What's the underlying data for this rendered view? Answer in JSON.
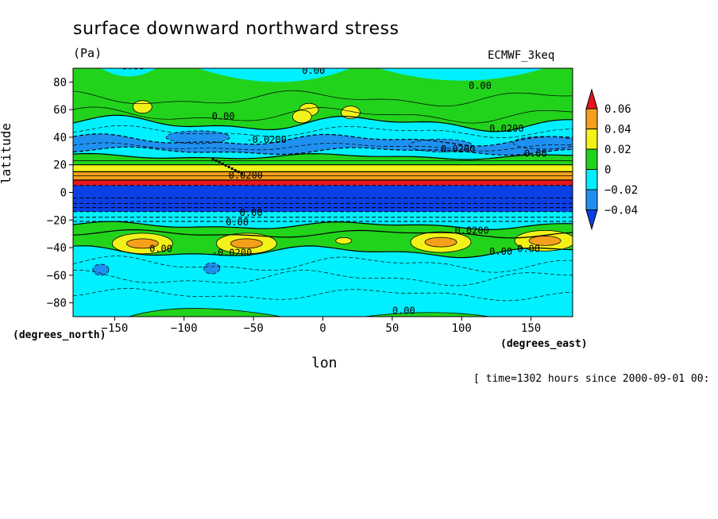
{
  "chart_data": {
    "type": "heatmap",
    "title": "surface downward northward stress",
    "units": "(Pa)",
    "dataset": "ECMWF_3keq",
    "xlabel": "lon",
    "ylabel": "latitude",
    "x_units_label": "(degrees_east)",
    "y_units_label": "(degrees_north)",
    "timestamp": "[ time=1302 hours since 2000-09-01 00:",
    "xlim": [
      -180,
      180
    ],
    "ylim": [
      -90,
      90
    ],
    "x_ticks": [
      -150,
      -100,
      -50,
      0,
      50,
      100,
      150
    ],
    "y_ticks": [
      80,
      60,
      40,
      20,
      0,
      -20,
      -40,
      -60,
      -80
    ],
    "colorbar": {
      "labels": [
        "0.06",
        "0.04",
        "0.02",
        "0",
        "-0.02",
        "-0.04"
      ],
      "colors": [
        "#e6151c",
        "#f5a01a",
        "#f2f21a",
        "#22d31c",
        "#00f0ff",
        "#1e90f0",
        "#0a40e6"
      ]
    },
    "latitude_bands": [
      {
        "lat_from": 90,
        "lat_to": 48,
        "value_range": "0 to -0.02"
      },
      {
        "lat_from": 48,
        "lat_to": 25,
        "value_range": "-0.02 to -0.04"
      },
      {
        "lat_from": 25,
        "lat_to": 6,
        "value_range": "0.02 to 0.06+"
      },
      {
        "lat_from": 6,
        "lat_to": -14,
        "value_range": "below -0.04"
      },
      {
        "lat_from": -14,
        "lat_to": -28,
        "value_range": "-0.02 to 0"
      },
      {
        "lat_from": -28,
        "lat_to": -45,
        "value_range": "0 to 0.04"
      },
      {
        "lat_from": -45,
        "lat_to": -90,
        "value_range": "0 to -0.02"
      }
    ],
    "contour_labels": [
      "0.00",
      "0.00",
      "0.00",
      "0.00",
      "-0.0200",
      "0.0200",
      "0.00",
      "0.0200",
      "0.0200",
      "0.00",
      "0.00",
      "0.00",
      "-0.0200",
      "0.0200",
      "0.00",
      "0.00",
      "0.00"
    ]
  }
}
